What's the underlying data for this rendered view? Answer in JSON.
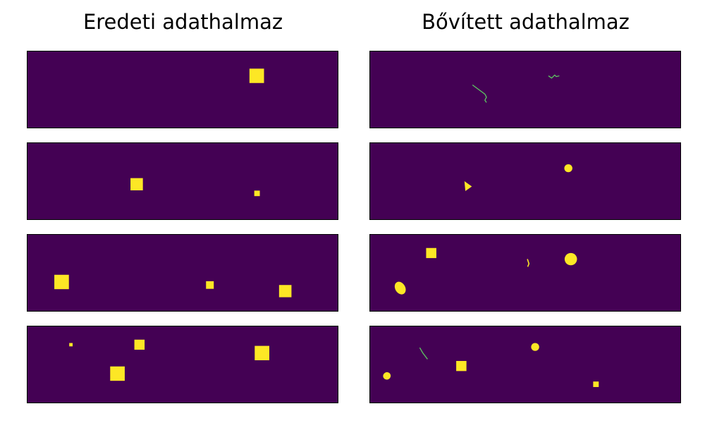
{
  "titles": {
    "left": "Eredeti adathalmaz",
    "right": "Bővített adathalmaz"
  },
  "colors": {
    "background": "#440154",
    "foreground": "#fde725",
    "thin_stroke": "#5ec962"
  },
  "chart_data": [
    {
      "type": "heatmap",
      "title": "Eredeti adathalmaz",
      "description_of_values": "binary masks (0 = background, 1 = object)",
      "panels": [
        {
          "shapes": [
            {
              "kind": "square",
              "cx": 0.739,
              "cy": 0.32,
              "size": 0.047
            }
          ]
        },
        {
          "shapes": [
            {
              "kind": "square",
              "cx": 0.352,
              "cy": 0.54,
              "size": 0.04
            },
            {
              "kind": "square",
              "cx": 0.74,
              "cy": 0.66,
              "size": 0.018
            }
          ]
        },
        {
          "shapes": [
            {
              "kind": "square",
              "cx": 0.11,
              "cy": 0.62,
              "size": 0.047
            },
            {
              "kind": "square",
              "cx": 0.588,
              "cy": 0.66,
              "size": 0.025
            },
            {
              "kind": "square",
              "cx": 0.831,
              "cy": 0.74,
              "size": 0.04
            }
          ]
        },
        {
          "shapes": [
            {
              "kind": "square",
              "cx": 0.14,
              "cy": 0.24,
              "size": 0.011
            },
            {
              "kind": "square",
              "cx": 0.361,
              "cy": 0.24,
              "size": 0.033
            },
            {
              "kind": "square",
              "cx": 0.29,
              "cy": 0.62,
              "size": 0.047
            },
            {
              "kind": "square",
              "cx": 0.756,
              "cy": 0.35,
              "size": 0.047
            }
          ]
        }
      ]
    },
    {
      "type": "heatmap",
      "title": "Bővített adathalmaz",
      "description_of_values": "binary masks (0 = background, 1 = object)",
      "panels": [
        {
          "shapes": [
            {
              "kind": "line",
              "points": [
                [
                  0.33,
                  0.44
                ],
                [
                  0.35,
                  0.5
                ],
                [
                  0.37,
                  0.56
                ],
                [
                  0.375,
                  0.6
                ],
                [
                  0.37,
                  0.64
                ],
                [
                  0.375,
                  0.67
                ]
              ]
            },
            {
              "kind": "line",
              "points": [
                [
                  0.575,
                  0.32
                ],
                [
                  0.585,
                  0.35
                ],
                [
                  0.595,
                  0.31
                ],
                [
                  0.6,
                  0.33
                ],
                [
                  0.61,
                  0.32
                ]
              ]
            }
          ]
        },
        {
          "shapes": [
            {
              "kind": "circle",
              "cx": 0.639,
              "cy": 0.33,
              "r": 0.013
            },
            {
              "kind": "triangle",
              "points": [
                [
                  0.304,
                  0.5
                ],
                [
                  0.307,
                  0.63
                ],
                [
                  0.328,
                  0.57
                ]
              ]
            }
          ]
        },
        {
          "shapes": [
            {
              "kind": "square",
              "cx": 0.197,
              "cy": 0.24,
              "size": 0.033
            },
            {
              "kind": "ellipse",
              "cx": 0.097,
              "cy": 0.7,
              "rx": 0.022,
              "ry": 0.065,
              "rot": 60
            },
            {
              "kind": "arc",
              "points": [
                [
                  0.507,
                  0.32
                ],
                [
                  0.512,
                  0.38
                ],
                [
                  0.508,
                  0.42
                ]
              ]
            },
            {
              "kind": "circle",
              "cx": 0.647,
              "cy": 0.32,
              "r": 0.02
            }
          ]
        },
        {
          "shapes": [
            {
              "kind": "line",
              "points": [
                [
                  0.16,
                  0.28
                ],
                [
                  0.17,
                  0.35
                ],
                [
                  0.185,
                  0.43
                ]
              ]
            },
            {
              "kind": "square",
              "cx": 0.294,
              "cy": 0.52,
              "size": 0.033
            },
            {
              "kind": "circle",
              "cx": 0.532,
              "cy": 0.27,
              "r": 0.013
            },
            {
              "kind": "ellipse",
              "cx": 0.054,
              "cy": 0.65,
              "rx": 0.012,
              "ry": 0.05,
              "rot": 60
            },
            {
              "kind": "square",
              "cx": 0.728,
              "cy": 0.76,
              "size": 0.018
            }
          ]
        }
      ]
    }
  ]
}
